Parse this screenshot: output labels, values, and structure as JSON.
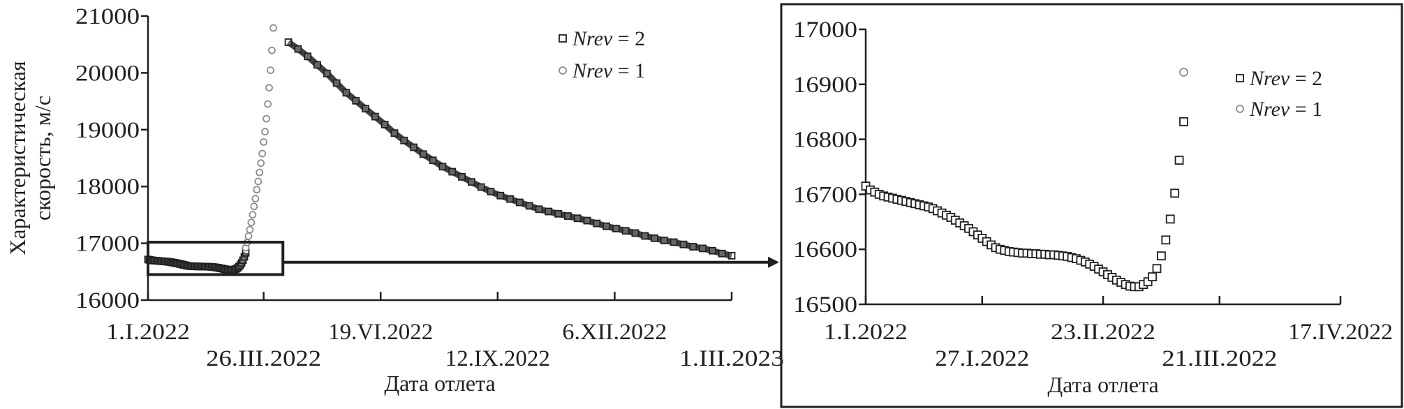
{
  "colors": {
    "nrev2": "#231f20",
    "nrev1": "#8c8c8c",
    "axis": "#231f20"
  },
  "chart_data": [
    {
      "type": "scatter",
      "ylabel": [
        "Характеристическая",
        "скорость, м/с"
      ],
      "xlabel": "Дата отлета",
      "ylim": [
        16000,
        21000
      ],
      "xlim": [
        "2022-01-01",
        "2023-03-01"
      ],
      "yticks": [
        16000,
        17000,
        18000,
        19000,
        20000,
        21000
      ],
      "xticks": [
        {
          "date": "2022-01-01",
          "label": "1.I.2022"
        },
        {
          "date": "2022-03-26",
          "label": "26.III.2022"
        },
        {
          "date": "2022-06-19",
          "label": "19.VI.2022"
        },
        {
          "date": "2022-09-12",
          "label": "12.IX.2022"
        },
        {
          "date": "2022-12-06",
          "label": "6.XII.2022"
        },
        {
          "date": "2023-03-01",
          "label": "1.III.2023"
        }
      ],
      "legend": {
        "placement": "top-right",
        "entries": [
          {
            "series": "nrev2",
            "marker": "square",
            "name_italic": "Nrev",
            "name_rest": " = 2"
          },
          {
            "series": "nrev1",
            "marker": "circle",
            "name_italic": "Nrev",
            "name_rest": " = 1"
          }
        ]
      },
      "zoom_region": {
        "x": [
          "2022-01-01",
          "2022-04-09"
        ],
        "y": [
          16450,
          17020
        ]
      },
      "grid": false
    },
    {
      "type": "scatter",
      "xlabel": "Дата отлета",
      "ylim": [
        16500,
        17000
      ],
      "xlim": [
        "2022-01-01",
        "2022-04-17"
      ],
      "yticks": [
        16500,
        16600,
        16700,
        16800,
        16900,
        17000
      ],
      "xticks": [
        {
          "date": "2022-01-01",
          "label": "1.I.2022"
        },
        {
          "date": "2022-01-27",
          "label": "27.I.2022"
        },
        {
          "date": "2022-02-23",
          "label": "23.II.2022"
        },
        {
          "date": "2022-03-21",
          "label": "21.III.2022"
        },
        {
          "date": "2022-04-17",
          "label": "17.IV.2022"
        }
      ],
      "legend": {
        "placement": "top-right",
        "entries": [
          {
            "series": "nrev2",
            "marker": "square",
            "name_italic": "Nrev",
            "name_rest": " = 2"
          },
          {
            "series": "nrev1",
            "marker": "circle",
            "name_italic": "Nrev",
            "name_rest": " = 1"
          }
        ]
      },
      "grid": false
    }
  ],
  "series": {
    "nrev2": [
      [
        "2022-01-01",
        16715
      ],
      [
        "2022-01-02",
        16708
      ],
      [
        "2022-01-03",
        16704
      ],
      [
        "2022-01-04",
        16700
      ],
      [
        "2022-01-05",
        16697
      ],
      [
        "2022-01-06",
        16695
      ],
      [
        "2022-01-07",
        16693
      ],
      [
        "2022-01-08",
        16691
      ],
      [
        "2022-01-09",
        16689
      ],
      [
        "2022-01-10",
        16687
      ],
      [
        "2022-01-11",
        16685
      ],
      [
        "2022-01-12",
        16683
      ],
      [
        "2022-01-13",
        16681
      ],
      [
        "2022-01-14",
        16679
      ],
      [
        "2022-01-15",
        16677
      ],
      [
        "2022-01-16",
        16674
      ],
      [
        "2022-01-17",
        16670
      ],
      [
        "2022-01-18",
        16666
      ],
      [
        "2022-01-19",
        16662
      ],
      [
        "2022-01-20",
        16658
      ],
      [
        "2022-01-21",
        16653
      ],
      [
        "2022-01-22",
        16648
      ],
      [
        "2022-01-23",
        16643
      ],
      [
        "2022-01-24",
        16638
      ],
      [
        "2022-01-25",
        16632
      ],
      [
        "2022-01-26",
        16626
      ],
      [
        "2022-01-27",
        16620
      ],
      [
        "2022-01-28",
        16614
      ],
      [
        "2022-01-29",
        16608
      ],
      [
        "2022-01-30",
        16603
      ],
      [
        "2022-01-31",
        16600
      ],
      [
        "2022-02-01",
        16598
      ],
      [
        "2022-02-02",
        16596
      ],
      [
        "2022-02-03",
        16595
      ],
      [
        "2022-02-04",
        16594
      ],
      [
        "2022-02-05",
        16593
      ],
      [
        "2022-02-06",
        16593
      ],
      [
        "2022-02-07",
        16592
      ],
      [
        "2022-02-08",
        16592
      ],
      [
        "2022-02-09",
        16591
      ],
      [
        "2022-02-10",
        16591
      ],
      [
        "2022-02-11",
        16590
      ],
      [
        "2022-02-12",
        16590
      ],
      [
        "2022-02-13",
        16589
      ],
      [
        "2022-02-14",
        16588
      ],
      [
        "2022-02-15",
        16587
      ],
      [
        "2022-02-16",
        16585
      ],
      [
        "2022-02-17",
        16583
      ],
      [
        "2022-02-18",
        16580
      ],
      [
        "2022-02-19",
        16577
      ],
      [
        "2022-02-20",
        16573
      ],
      [
        "2022-02-21",
        16569
      ],
      [
        "2022-02-22",
        16564
      ],
      [
        "2022-02-23",
        16559
      ],
      [
        "2022-02-24",
        16554
      ],
      [
        "2022-02-25",
        16549
      ],
      [
        "2022-02-26",
        16544
      ],
      [
        "2022-02-27",
        16540
      ],
      [
        "2022-02-28",
        16536
      ],
      [
        "2022-03-01",
        16533
      ],
      [
        "2022-03-02",
        16532
      ],
      [
        "2022-03-03",
        16532
      ],
      [
        "2022-03-04",
        16536
      ],
      [
        "2022-03-05",
        16541
      ],
      [
        "2022-03-06",
        16550
      ],
      [
        "2022-03-07",
        16565
      ],
      [
        "2022-03-08",
        16588
      ],
      [
        "2022-03-09",
        16617
      ],
      [
        "2022-03-10",
        16655
      ],
      [
        "2022-03-11",
        16702
      ],
      [
        "2022-03-12",
        16762
      ],
      [
        "2022-03-13",
        16832
      ],
      [
        "2022-04-13",
        20540
      ],
      [
        "2022-04-20",
        20420
      ],
      [
        "2022-04-27",
        20290
      ],
      [
        "2022-05-04",
        20140
      ],
      [
        "2022-05-11",
        19990
      ],
      [
        "2022-05-18",
        19820
      ],
      [
        "2022-05-25",
        19650
      ],
      [
        "2022-06-01",
        19510
      ],
      [
        "2022-06-08",
        19370
      ],
      [
        "2022-06-15",
        19230
      ],
      [
        "2022-06-22",
        19090
      ],
      [
        "2022-06-29",
        18940
      ],
      [
        "2022-07-06",
        18810
      ],
      [
        "2022-07-13",
        18690
      ],
      [
        "2022-07-20",
        18570
      ],
      [
        "2022-07-27",
        18460
      ],
      [
        "2022-08-03",
        18350
      ],
      [
        "2022-08-10",
        18260
      ],
      [
        "2022-08-17",
        18170
      ],
      [
        "2022-08-24",
        18080
      ],
      [
        "2022-08-31",
        17990
      ],
      [
        "2022-09-07",
        17910
      ],
      [
        "2022-09-14",
        17840
      ],
      [
        "2022-09-21",
        17780
      ],
      [
        "2022-09-28",
        17720
      ],
      [
        "2022-10-05",
        17660
      ],
      [
        "2022-10-12",
        17600
      ],
      [
        "2022-10-19",
        17560
      ],
      [
        "2022-10-26",
        17520
      ],
      [
        "2022-11-02",
        17480
      ],
      [
        "2022-11-09",
        17440
      ],
      [
        "2022-11-16",
        17400
      ],
      [
        "2022-11-23",
        17350
      ],
      [
        "2022-11-30",
        17300
      ],
      [
        "2022-12-07",
        17260
      ],
      [
        "2022-12-14",
        17220
      ],
      [
        "2022-12-21",
        17180
      ],
      [
        "2022-12-28",
        17130
      ],
      [
        "2023-01-04",
        17090
      ],
      [
        "2023-01-11",
        17050
      ],
      [
        "2023-01-18",
        17020
      ],
      [
        "2023-01-25",
        16980
      ],
      [
        "2023-02-01",
        16940
      ],
      [
        "2023-02-08",
        16910
      ],
      [
        "2023-02-15",
        16870
      ],
      [
        "2023-02-22",
        16820
      ],
      [
        "2023-03-01",
        16782
      ]
    ],
    "nrev1": [
      [
        "2022-03-13",
        16922
      ],
      [
        "2022-03-14",
        17013
      ],
      [
        "2022-03-15",
        17126
      ],
      [
        "2022-03-16",
        17240
      ],
      [
        "2022-03-17",
        17367
      ],
      [
        "2022-03-18",
        17503
      ],
      [
        "2022-03-19",
        17649
      ],
      [
        "2022-03-20",
        17785
      ],
      [
        "2022-03-21",
        17944
      ],
      [
        "2022-03-22",
        18089
      ],
      [
        "2022-03-23",
        18248
      ],
      [
        "2022-03-24",
        18412
      ],
      [
        "2022-03-25",
        18579
      ],
      [
        "2022-03-26",
        18784
      ],
      [
        "2022-03-27",
        18965
      ],
      [
        "2022-03-28",
        19193
      ],
      [
        "2022-03-29",
        19451
      ],
      [
        "2022-03-30",
        19738
      ],
      [
        "2022-03-31",
        20046
      ],
      [
        "2022-04-01",
        20396
      ],
      [
        "2022-04-02",
        20791
      ]
    ]
  }
}
